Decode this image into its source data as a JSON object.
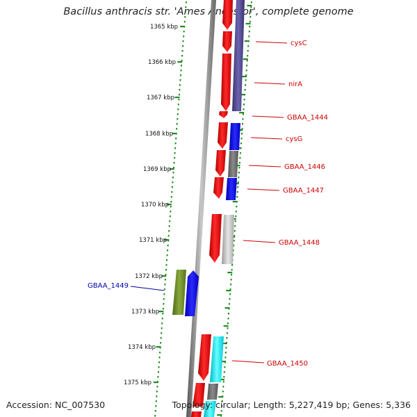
{
  "title": "Bacillus anthracis str. 'Ames Ancestor', complete genome",
  "footer": {
    "accession": "Accession: NC_007530",
    "summary": "Topology: circular; Length: 5,227,419 bp; Genes: 5,336"
  },
  "scale": {
    "unit": "kbp",
    "ticks": [
      "1365 kbp",
      "1366 kbp",
      "1367 kbp",
      "1368 kbp",
      "1369 kbp",
      "1370 kbp",
      "1371 kbp",
      "1372 kbp",
      "1373 kbp",
      "1374 kbp",
      "1375 kbp"
    ]
  },
  "colors": {
    "label_forward": "#cc0000",
    "label_reverse": "#0000aa",
    "backbone": "#888888",
    "scale_dots": "#228b22"
  },
  "genes": [
    {
      "name": "cysC",
      "strand": "forward"
    },
    {
      "name": "nirA",
      "strand": "forward"
    },
    {
      "name": "GBAA_1444",
      "strand": "forward"
    },
    {
      "name": "cysG",
      "strand": "forward"
    },
    {
      "name": "GBAA_1446",
      "strand": "forward"
    },
    {
      "name": "GBAA_1447",
      "strand": "forward"
    },
    {
      "name": "GBAA_1448",
      "strand": "forward"
    },
    {
      "name": "GBAA_1449",
      "strand": "reverse"
    },
    {
      "name": "GBAA_1450",
      "strand": "forward"
    }
  ]
}
